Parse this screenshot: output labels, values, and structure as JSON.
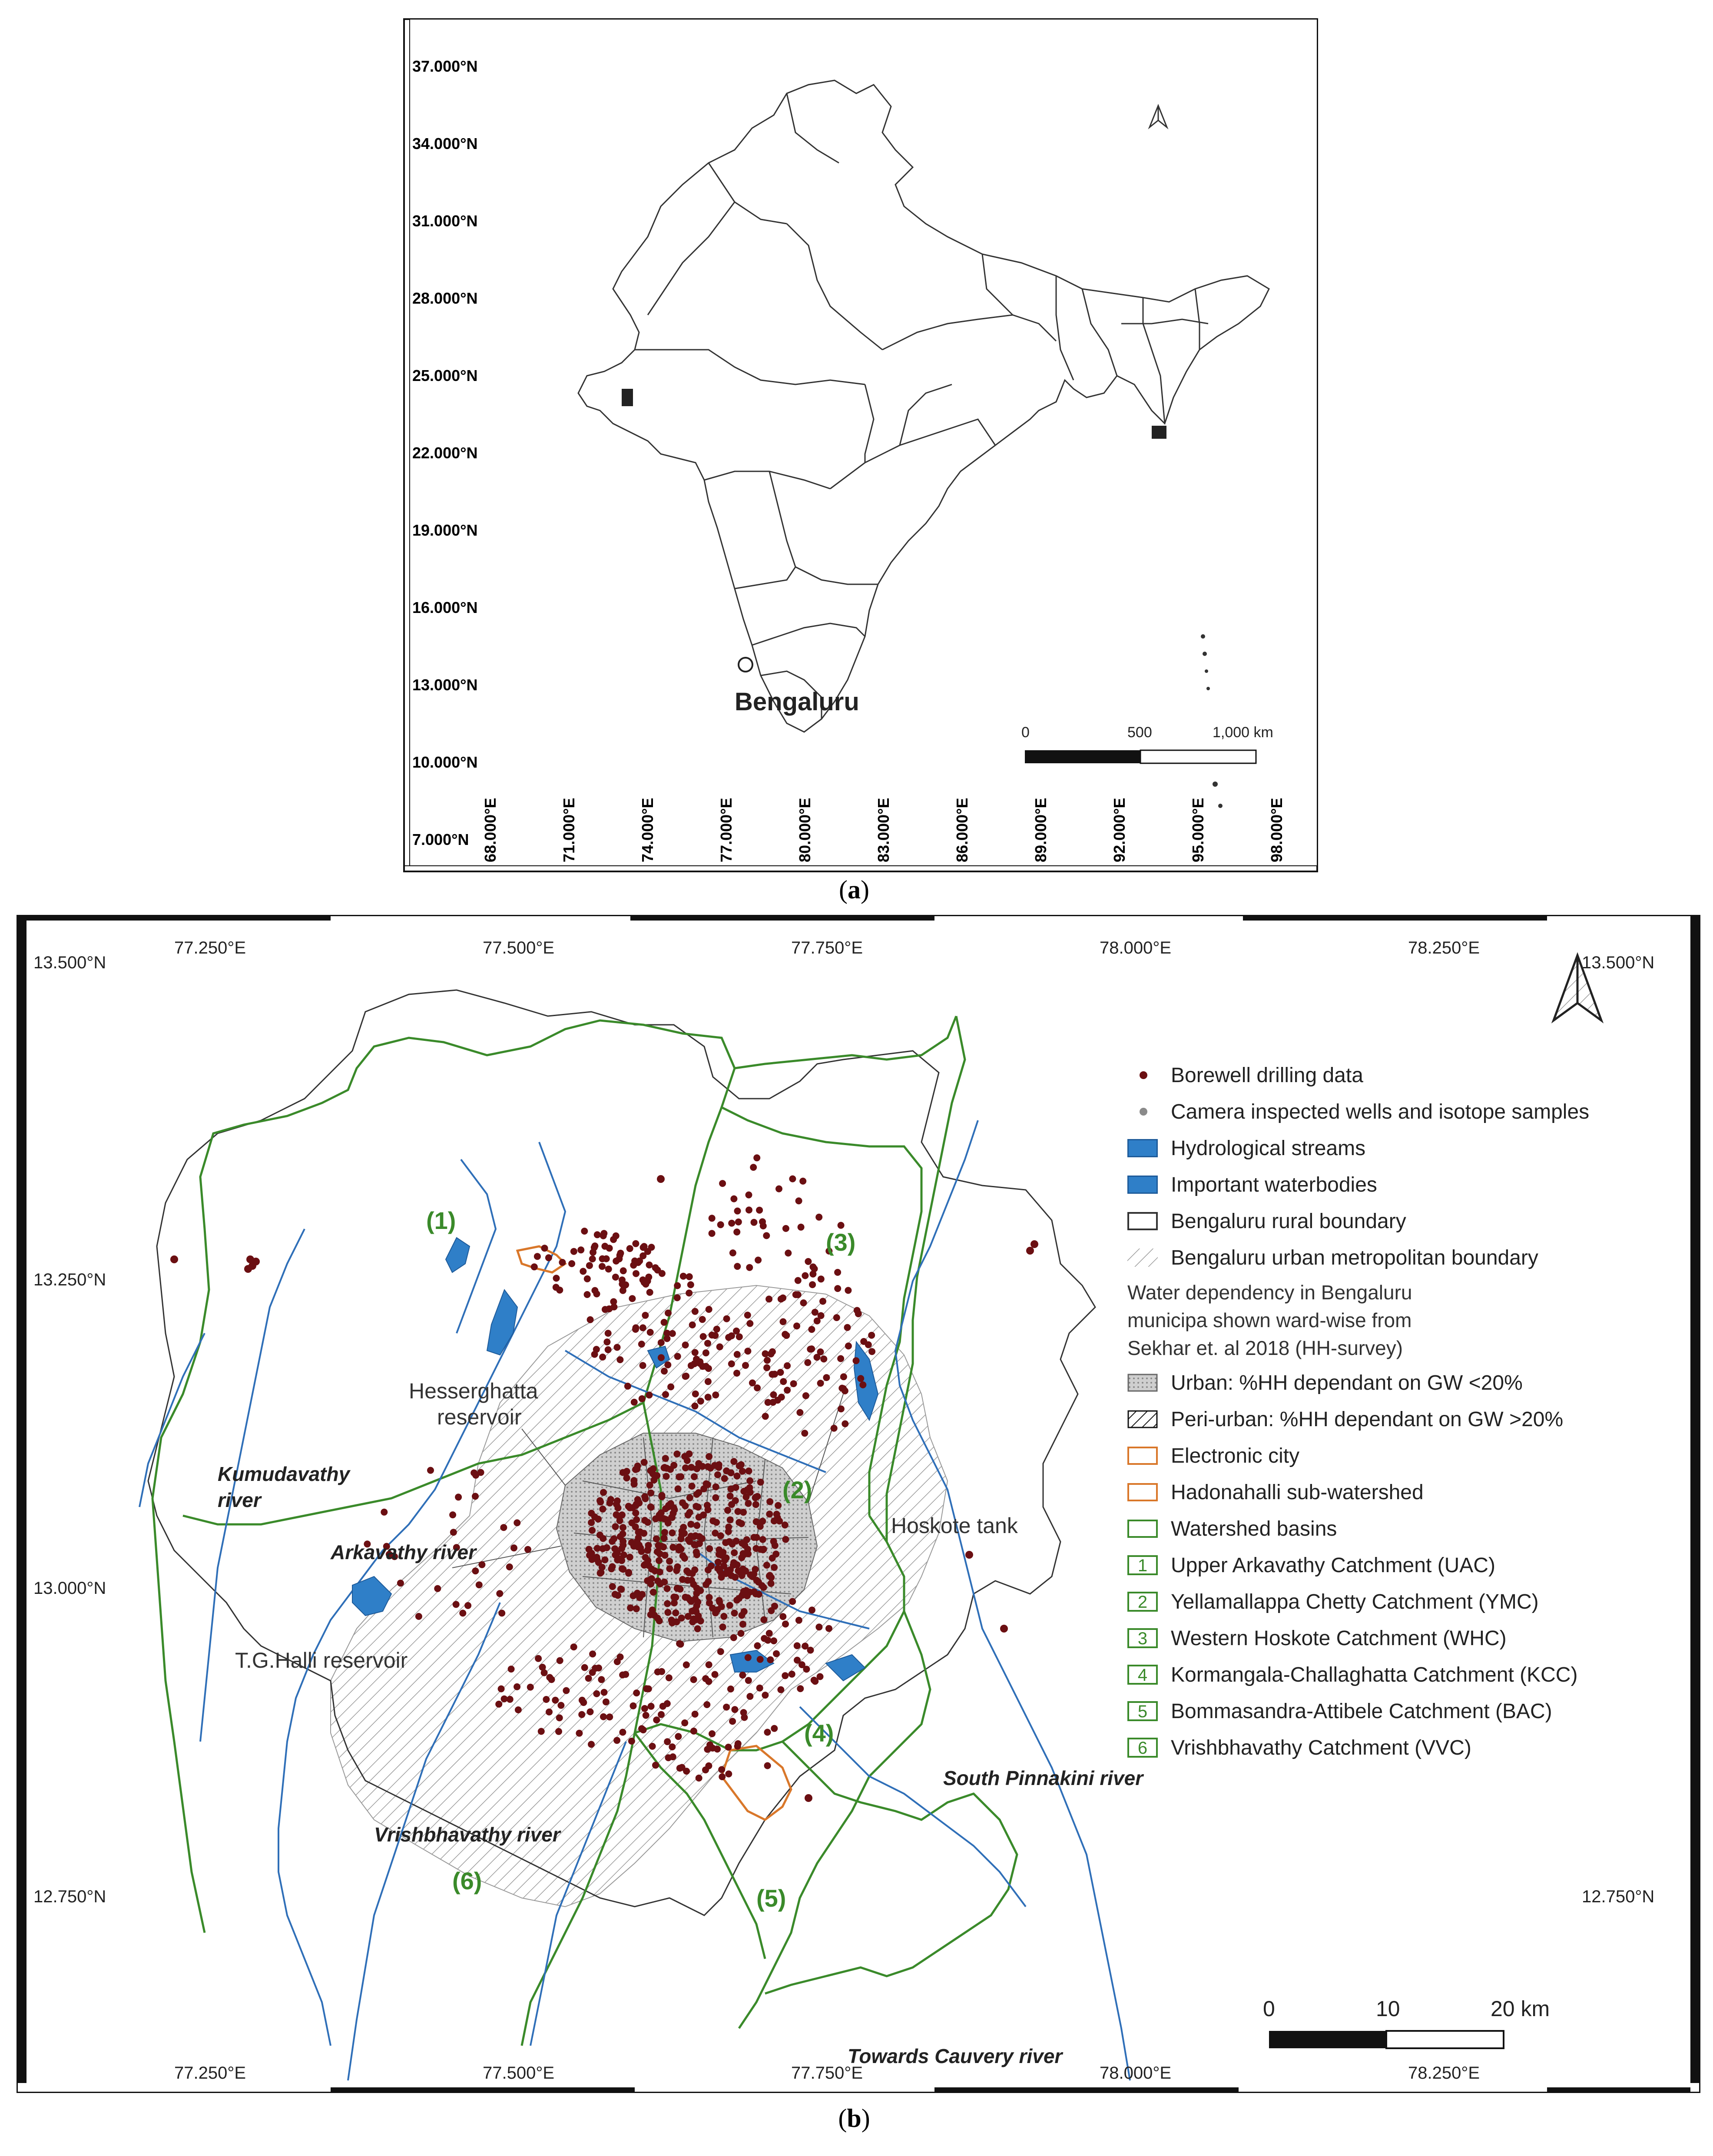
{
  "panel_a": {
    "lat_labels": [
      "37.000°N",
      "34.000°N",
      "31.000°N",
      "28.000°N",
      "25.000°N",
      "22.000°N",
      "19.000°N",
      "16.000°N",
      "13.000°N",
      "10.000°N",
      "7.000°N"
    ],
    "lon_labels": [
      "68.000°E",
      "71.000°E",
      "74.000°E",
      "77.000°E",
      "80.000°E",
      "83.000°E",
      "86.000°E",
      "89.000°E",
      "92.000°E",
      "95.000°E",
      "98.000°E"
    ],
    "city_label": "Bengaluru",
    "scale": {
      "zero": "0",
      "mid": "500",
      "end": "1,000 km"
    },
    "caption": "a"
  },
  "panel_b": {
    "top_lon_labels": [
      "77.250°E",
      "77.500°E",
      "77.750°E",
      "78.000°E",
      "78.250°E"
    ],
    "bottom_lon_labels": [
      "77.250°E",
      "77.500°E",
      "77.750°E",
      "78.000°E",
      "78.250°E"
    ],
    "left_lat_labels": [
      "13.500°N",
      "13.250°N",
      "13.000°N",
      "12.750°N"
    ],
    "right_lat_labels": [
      "13.500°N",
      "12.750°N"
    ],
    "place_labels": {
      "hesserghatta_1": "Hesserghatta",
      "hesserghatta_2": "reservoir",
      "tg_halli": "T.G.Halli reservoir",
      "hoskote": "Hoskote tank"
    },
    "river_labels": {
      "kumudavathy_1": "Kumudavathy",
      "kumudavathy_2": "river",
      "arkavathy": "Arkavathy river",
      "vrishbhavathy": "Vrishbhavathy river",
      "south_pinnakini": "South Pinnakini river",
      "cauvery": "Towards Cauvery river"
    },
    "watershed_numbers": [
      "(1)",
      "(2)",
      "(3)",
      "(4)",
      "(5)",
      "(6)"
    ],
    "legend": {
      "borewell": "Borewell drilling data",
      "camera": "Camera inspected wells and isotope samples",
      "streams": "Hydrological streams",
      "waterbodies": "Important waterbodies",
      "rural": "Bengaluru rural boundary",
      "urban_metro": "Bengaluru urban metropolitan boundary",
      "note_1": "Water dependency in Bengaluru",
      "note_2": "municipa shown ward-wise from",
      "note_3": "Sekhar et. al 2018 (HH-survey)",
      "urban_gw": "Urban: %HH dependant on GW <20%",
      "periurban_gw": "Peri-urban: %HH dependant on GW >20%",
      "electronic_city": "Electronic city",
      "hadonahalli": "Hadonahalli sub-watershed",
      "watershed_basins": "Watershed basins",
      "catchments": [
        {
          "num": "1",
          "name": "Upper Arkavathy Catchment (UAC)"
        },
        {
          "num": "2",
          "name": "Yellamallappa Chetty Catchment (YMC)"
        },
        {
          "num": "3",
          "name": "Western Hoskote Catchment (WHC)"
        },
        {
          "num": "4",
          "name": "Kormangala-Challaghatta Catchment (KCC)"
        },
        {
          "num": "5",
          "name": "Bommasandra-Attibele Catchment (BAC)"
        },
        {
          "num": "6",
          "name": "Vrishbhavathy Catchment (VVC)"
        }
      ]
    },
    "scale": {
      "zero": "0",
      "mid": "10",
      "end": "20 km"
    },
    "caption": "b"
  },
  "colors": {
    "borewell": "#6b0f12",
    "camera": "#8a8a8a",
    "water": "#2f7fc8",
    "watershed": "#3a8a2a",
    "orange": "#d9772a",
    "urban_fill": "#b8b8b8"
  }
}
